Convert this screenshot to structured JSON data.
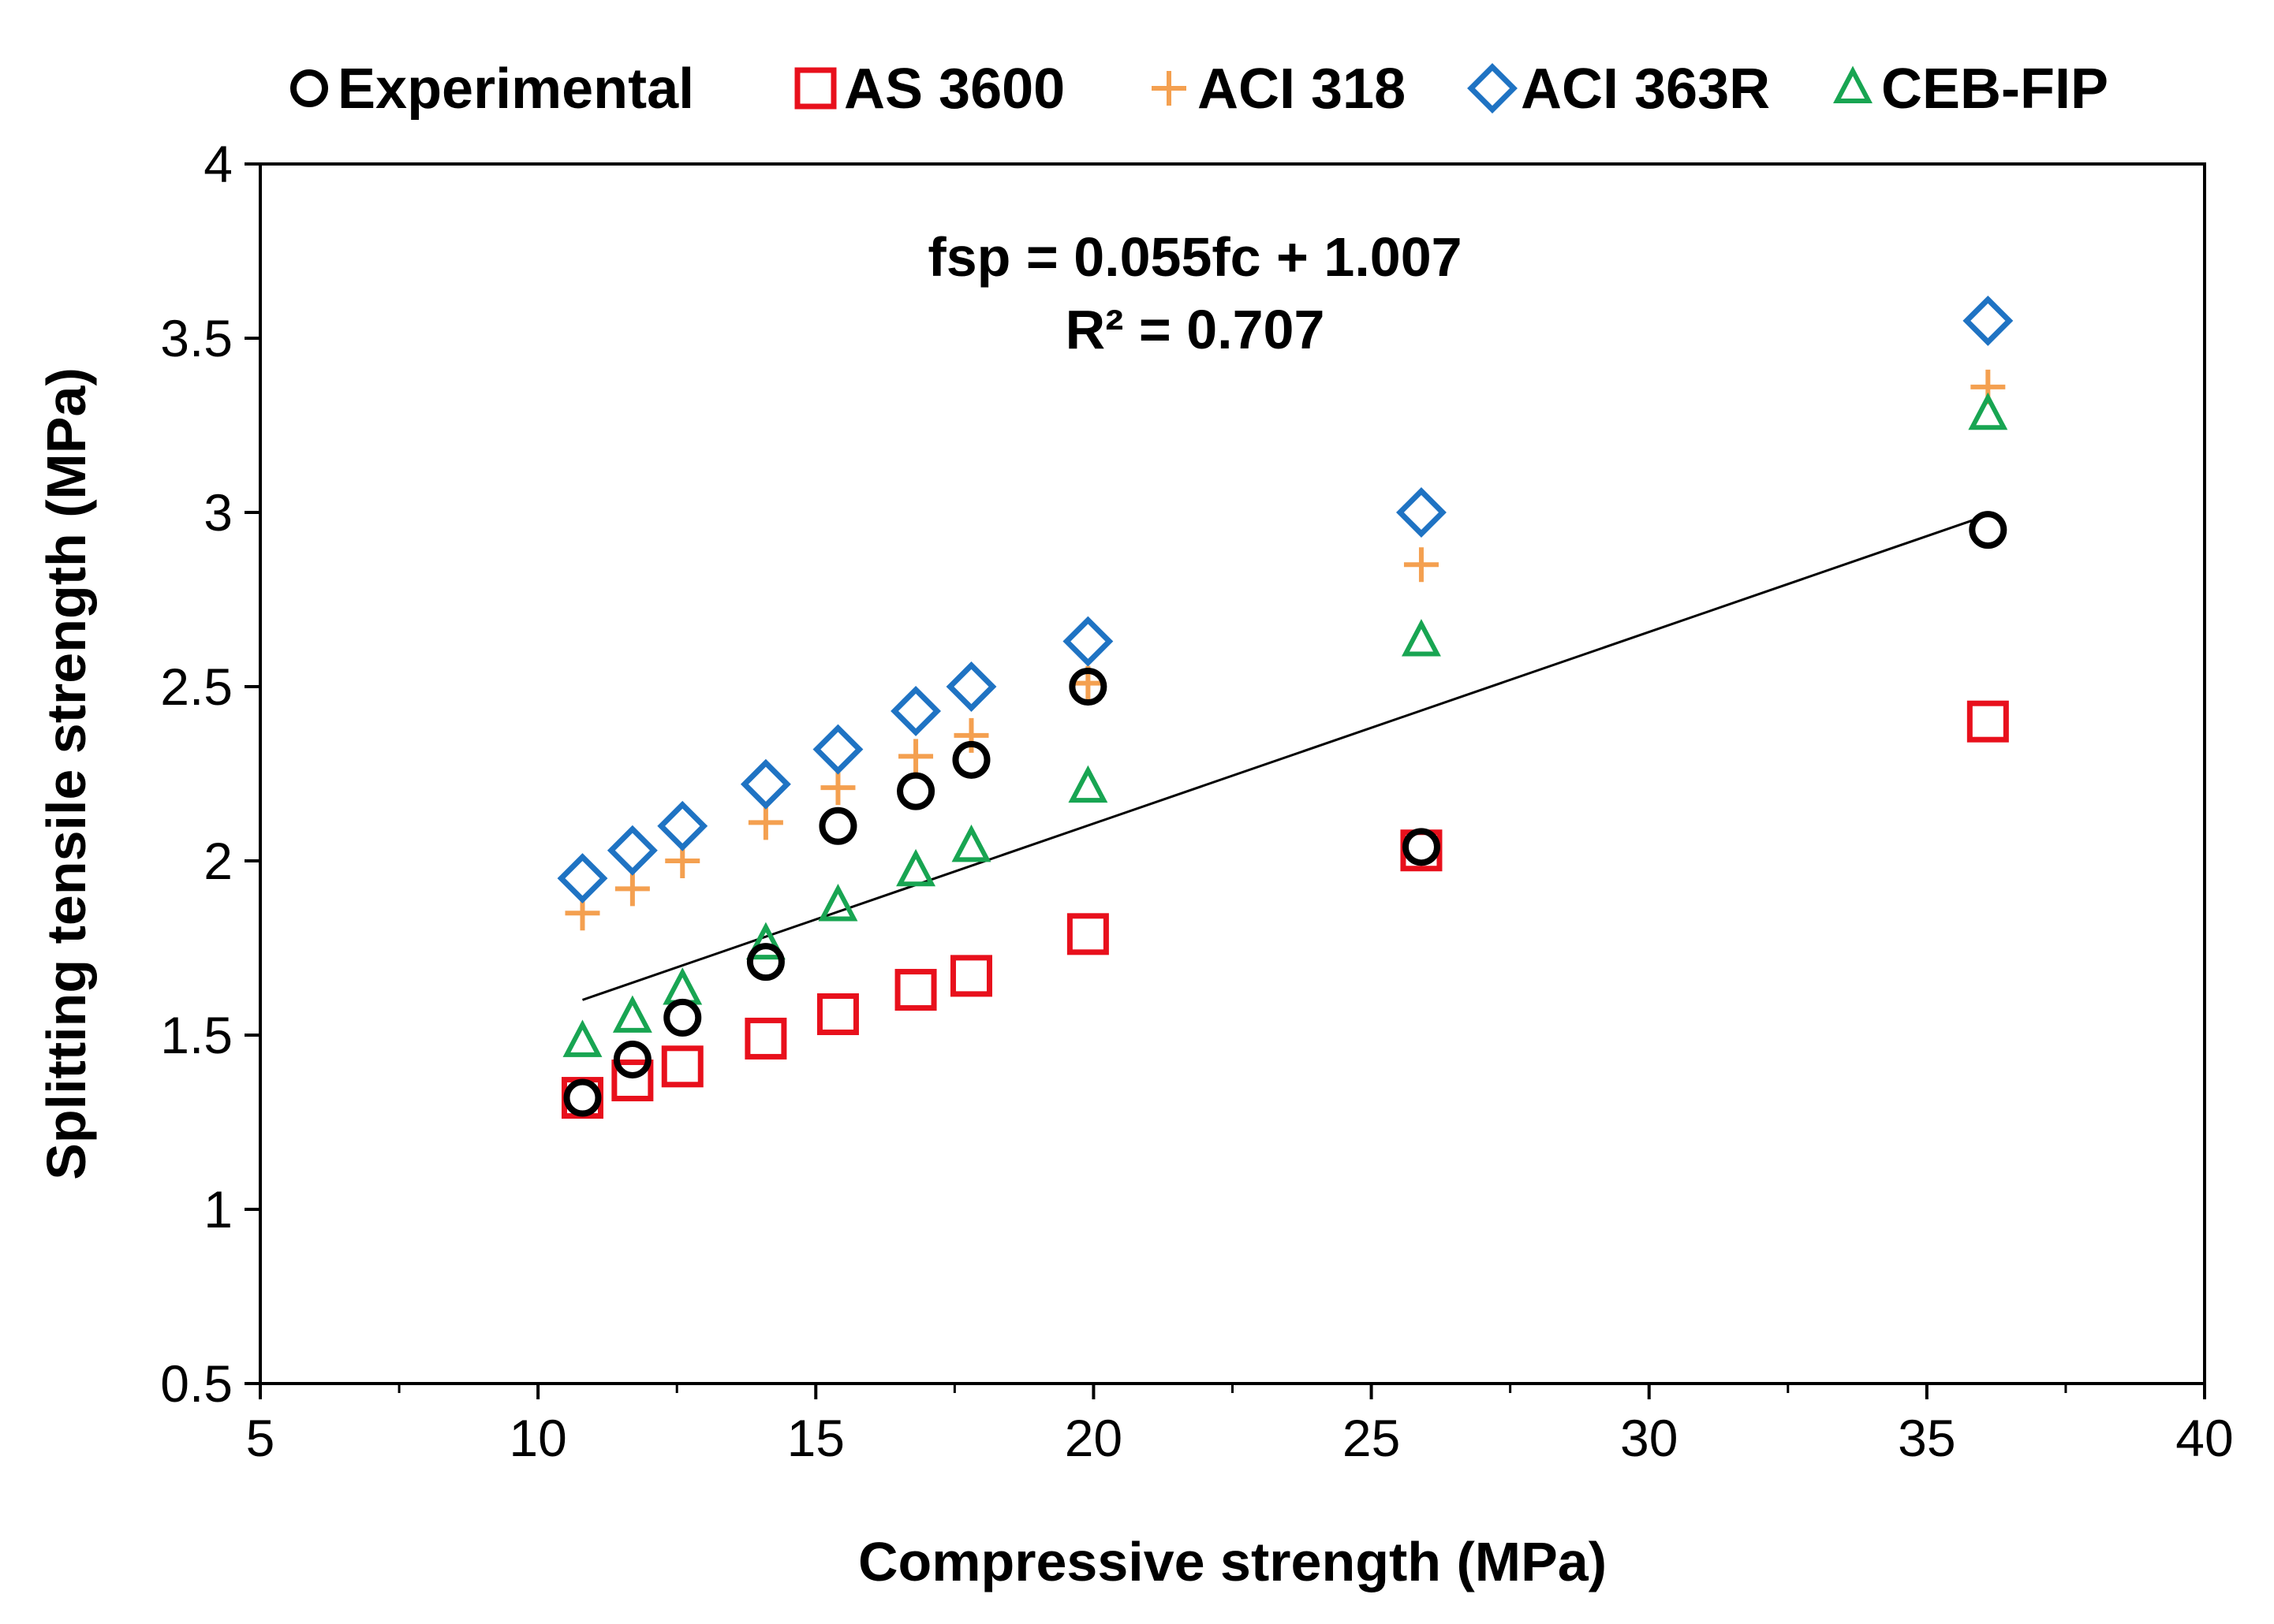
{
  "chart_data": {
    "type": "scatter",
    "title": "",
    "xlabel": "Compressive strength (MPa)",
    "ylabel": "Splitting tensile strength (MPa)",
    "xlim": [
      5,
      40
    ],
    "ylim": [
      0.5,
      4
    ],
    "x_ticks": [
      "5",
      "10",
      "15",
      "20",
      "25",
      "30",
      "35",
      "40"
    ],
    "y_ticks": [
      "0.5",
      "1",
      "1.5",
      "2",
      "2.5",
      "3",
      "3.5",
      "4"
    ],
    "grid": false,
    "legend_position": "top",
    "x": [
      10.8,
      11.7,
      12.6,
      14.1,
      15.4,
      16.8,
      17.8,
      19.9,
      25.9,
      36.1
    ],
    "series": [
      {
        "name": "Experimental",
        "marker": "circle",
        "color": "#000000",
        "values": [
          1.32,
          1.43,
          1.55,
          1.71,
          2.1,
          2.2,
          2.29,
          2.5,
          2.04,
          2.95
        ]
      },
      {
        "name": "AS 3600",
        "marker": "square",
        "color": "#e8101c",
        "values": [
          1.32,
          1.37,
          1.41,
          1.49,
          1.56,
          1.63,
          1.67,
          1.79,
          2.03,
          2.4
        ]
      },
      {
        "name": "ACI 318",
        "marker": "plus",
        "color": "#f4a050",
        "values": [
          1.85,
          1.92,
          2.0,
          2.11,
          2.21,
          2.3,
          2.36,
          2.51,
          2.85,
          3.36
        ]
      },
      {
        "name": "ACI 363R",
        "marker": "diamond",
        "color": "#1f73c3",
        "values": [
          1.95,
          2.03,
          2.1,
          2.22,
          2.32,
          2.43,
          2.5,
          2.63,
          3.0,
          3.55
        ]
      },
      {
        "name": "CEB-FIP",
        "marker": "triangle",
        "color": "#18a552",
        "values": [
          1.48,
          1.55,
          1.63,
          1.76,
          1.87,
          1.97,
          2.04,
          2.21,
          2.63,
          3.28
        ]
      }
    ],
    "trendline": {
      "x": [
        10.8,
        36.1
      ],
      "slope": 0.055,
      "intercept": 1.007,
      "color": "#000000"
    },
    "annotations": [
      "fsp  = 0.055fc  + 1.007",
      "R² = 0.707"
    ]
  }
}
